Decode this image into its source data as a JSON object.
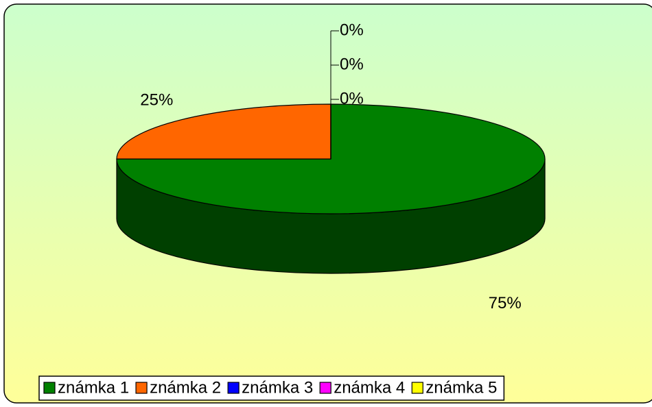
{
  "chart_data": {
    "type": "pie",
    "categories": [
      "známka 1",
      "známka 2",
      "známka 3",
      "známka 4",
      "známka 5"
    ],
    "values": [
      75,
      25,
      0,
      0,
      0
    ],
    "value_labels": [
      "75%",
      "25%",
      "0%",
      "0%",
      "0%"
    ],
    "colors": [
      "#008000",
      "#ff6600",
      "#0000ff",
      "#ff00ff",
      "#ffff00"
    ],
    "legend": "bottom"
  }
}
